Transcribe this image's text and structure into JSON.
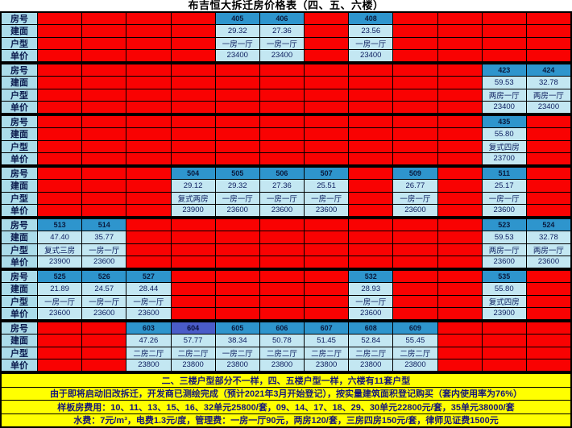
{
  "title": "布吉恒大拆迁房价格表（四、五、六楼）",
  "row_labels": [
    "房号",
    "建面",
    "户型",
    "单价"
  ],
  "column_count": 12,
  "colors": {
    "unavailable_red": "#f90202",
    "room_header_blue": "#2e95cd",
    "room_header_highlight": "#4a5cc9",
    "value_bg": "#c3e7f2",
    "label_bg": "#abdcea",
    "note_bg": "#ffff00",
    "note_text": "#151579"
  },
  "blocks": [
    {
      "name": "floor4-row1",
      "rooms": [
        {
          "col": 5,
          "no": "405",
          "area": "29.32",
          "layout": "一房一厅",
          "price": "23400"
        },
        {
          "col": 6,
          "no": "406",
          "area": "27.36",
          "layout": "一房一厅",
          "price": "23400"
        },
        {
          "col": 8,
          "no": "408",
          "area": "23.56",
          "layout": "一房一厅",
          "price": "23400"
        }
      ]
    },
    {
      "name": "floor4-row2",
      "rooms": [
        {
          "col": 11,
          "no": "423",
          "area": "59.53",
          "layout": "两房一厅",
          "price": "23400"
        },
        {
          "col": 12,
          "no": "424",
          "area": "32.78",
          "layout": "两房一厅",
          "price": "23400"
        }
      ]
    },
    {
      "name": "floor4-row3",
      "rooms": [
        {
          "col": 11,
          "no": "435",
          "area": "55.80",
          "layout": "复式四房",
          "price": "23700"
        }
      ]
    },
    {
      "name": "floor5-row1",
      "rooms": [
        {
          "col": 4,
          "no": "504",
          "area": "29.12",
          "layout": "复式两房",
          "price": "23900"
        },
        {
          "col": 5,
          "no": "505",
          "area": "29.32",
          "layout": "一房一厅",
          "price": "23600"
        },
        {
          "col": 6,
          "no": "506",
          "area": "27.36",
          "layout": "一房一厅",
          "price": "23600"
        },
        {
          "col": 7,
          "no": "507",
          "area": "25.51",
          "layout": "一房一厅",
          "price": "23600"
        },
        {
          "col": 9,
          "no": "509",
          "area": "26.77",
          "layout": "一房一厅",
          "price": "23600"
        },
        {
          "col": 11,
          "no": "511",
          "area": "25.17",
          "layout": "一房一厅",
          "price": "23600"
        }
      ]
    },
    {
      "name": "floor5-row2",
      "rooms": [
        {
          "col": 1,
          "no": "513",
          "area": "47.40",
          "layout": "复式三房",
          "price": "23900"
        },
        {
          "col": 2,
          "no": "514",
          "area": "35.77",
          "layout": "一房一厅",
          "price": "23600"
        },
        {
          "col": 11,
          "no": "523",
          "area": "59.53",
          "layout": "两房一厅",
          "price": "23600"
        },
        {
          "col": 12,
          "no": "524",
          "area": "32.78",
          "layout": "两房一厅",
          "price": "23600"
        }
      ]
    },
    {
      "name": "floor5-row3",
      "rooms": [
        {
          "col": 1,
          "no": "525",
          "area": "21.89",
          "layout": "一房一厅",
          "price": "23600"
        },
        {
          "col": 2,
          "no": "526",
          "area": "24.57",
          "layout": "一房一厅",
          "price": "23600"
        },
        {
          "col": 3,
          "no": "527",
          "area": "28.44",
          "layout": "一房一厅",
          "price": "23600"
        },
        {
          "col": 8,
          "no": "532",
          "area": "28.93",
          "layout": "一房一厅",
          "price": "23600"
        },
        {
          "col": 11,
          "no": "535",
          "area": "55.80",
          "layout": "复式四房",
          "price": "23900"
        }
      ]
    },
    {
      "name": "floor6",
      "rooms": [
        {
          "col": 3,
          "no": "603",
          "area": "47.26",
          "layout": "二房二厅",
          "price": "23800"
        },
        {
          "col": 4,
          "no": "604",
          "area": "57.77",
          "layout": "二房二厅",
          "price": "23800",
          "highlight": true
        },
        {
          "col": 5,
          "no": "605",
          "area": "38.34",
          "layout": "一房二厅",
          "price": "23800"
        },
        {
          "col": 6,
          "no": "606",
          "area": "50.78",
          "layout": "二房二厅",
          "price": "23800"
        },
        {
          "col": 7,
          "no": "607",
          "area": "51.45",
          "layout": "二房二厅",
          "price": "23800"
        },
        {
          "col": 8,
          "no": "608",
          "area": "52.84",
          "layout": "二房二厅",
          "price": "23800"
        },
        {
          "col": 9,
          "no": "609",
          "area": "55.45",
          "layout": "二房二厅",
          "price": "23800"
        }
      ]
    }
  ],
  "notes": [
    "二、三楼户型部分不一样，四、五楼户型一样，六楼有11套户型",
    "由于即将启动旧改拆迁，开发商已测绘完成（预计2021年3月开始登记），按实量建筑面积登记购买（套内使用率为76%）",
    "样板房费用：10、11、13、15、16、32单元25800/套，09、14、17、18、29、30单元22800元/套，35单元38000/套",
    "水费：7元/m³，电费1.3元/度，管理费：一房一厅90元，两房120/套，三房四房150元/套，律师见证费1500元"
  ]
}
